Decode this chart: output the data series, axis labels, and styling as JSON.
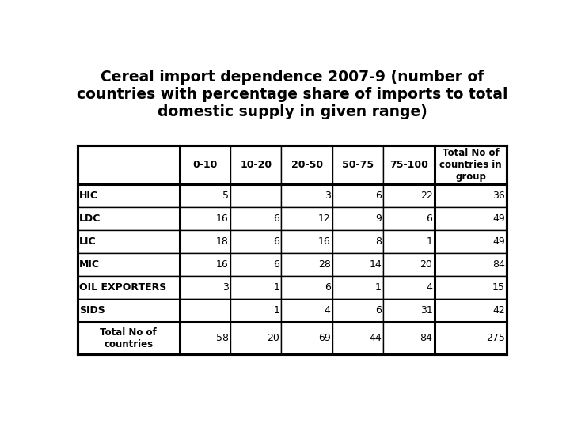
{
  "title": "Cereal import dependence 2007-9 (number of\ncountries with percentage share of imports to total\ndomestic supply in given range)",
  "title_fontsize": 14,
  "col_headers": [
    "",
    "0-10",
    "10-20",
    "20-50",
    "50-75",
    "75-100",
    "Total No of\ncountries in\ngroup"
  ],
  "data": [
    [
      "HIC",
      "5",
      "",
      "3",
      "6",
      "22",
      "36"
    ],
    [
      "LDC",
      "16",
      "6",
      "12",
      "9",
      "6",
      "49"
    ],
    [
      "LIC",
      "18",
      "6",
      "16",
      "8",
      "1",
      "49"
    ],
    [
      "MIC",
      "16",
      "6",
      "28",
      "14",
      "20",
      "84"
    ],
    [
      "OIL EXPORTERS",
      "3",
      "1",
      "6",
      "1",
      "4",
      "15"
    ],
    [
      "SIDS",
      "",
      "1",
      "4",
      "6",
      "31",
      "42"
    ],
    [
      "Total No of\ncountries",
      "58",
      "20",
      "69",
      "44",
      "84",
      "275"
    ]
  ],
  "background_color": "#ffffff",
  "table_line_color": "#000000",
  "font_color": "#000000"
}
